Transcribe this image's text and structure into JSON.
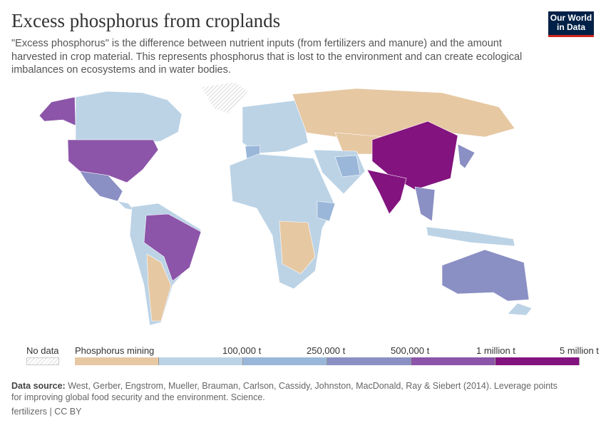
{
  "header": {
    "title": "Excess phosphorus from croplands",
    "subtitle": "\"Excess phosphorus\" is the difference between nutrient inputs (from fertilizers and manure) and the amount harvested in crop material. This represents phosphorus that is lost to the environment and can create ecological imbalances on ecosystems and in water bodies.",
    "logo": "Our World in Data"
  },
  "legend": {
    "no_data": "No data",
    "bins": [
      {
        "label": "Phosphorus mining",
        "color": "#e6c8a3"
      },
      {
        "label": "",
        "color": "#bcd3e6"
      },
      {
        "label": "100,000 t",
        "color": "#9ab6d8"
      },
      {
        "label": "250,000 t",
        "color": "#8a8fc4"
      },
      {
        "label": "500,000 t",
        "color": "#8c55a9"
      },
      {
        "label": "1 million t",
        "color": "#83137f"
      }
    ],
    "end_label": "5 million t"
  },
  "footer": {
    "source_label": "Data source:",
    "source": "West, Gerber, Engstrom, Mueller, Brauman, Carlson, Cassidy, Johnston, MacDonald, Ray & Siebert (2014). Leverage points for improving global food security and the environment. Science.",
    "license": "fertilizers | CC BY"
  }
}
